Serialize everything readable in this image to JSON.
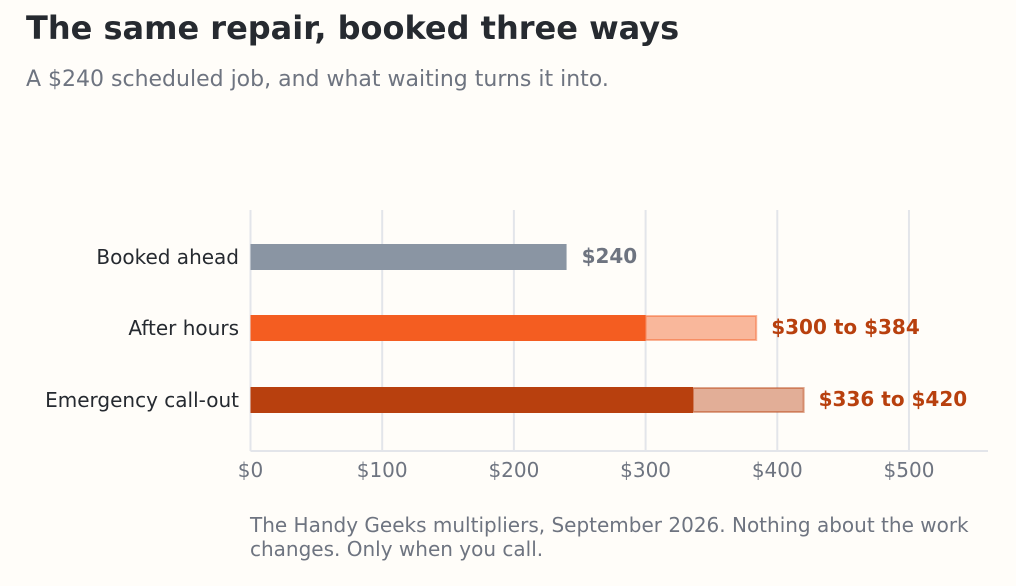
{
  "title": "The same repair, booked three ways",
  "subtitle": "A $240 scheduled job, and what waiting turns it into.",
  "footnote": "The Handy Geeks multipliers, September 2026. Nothing about the work changes. Only when you call.",
  "colors": {
    "background": "#FFFDF9",
    "grid": "#E3E5EA",
    "axis_text": "#6E7480",
    "category_text": "#262A30",
    "booked_ahead": "#8A95A3",
    "after_hours": "#F45D21",
    "after_hours_range": "#F9B79B",
    "emergency": "#B8400E",
    "emergency_range": "#E2AE97",
    "accent_label": "#B8400E",
    "neutral_label": "#6E7480"
  },
  "chart_data": {
    "type": "bar",
    "orientation": "horizontal",
    "xlim": [
      0,
      560
    ],
    "xticks": [
      0,
      100,
      200,
      300,
      400,
      500
    ],
    "xtick_labels": [
      "$0",
      "$100",
      "$200",
      "$300",
      "$400",
      "$500"
    ],
    "grid": true,
    "categories": [
      "Booked ahead",
      "After hours",
      "Emergency call-out"
    ],
    "bars": [
      {
        "category": "Booked ahead",
        "low": 240,
        "high": 240,
        "label": "$240",
        "color": "#8A95A3",
        "range_color": "#8A95A3",
        "label_color": "#6E7480"
      },
      {
        "category": "After hours",
        "low": 300,
        "high": 384,
        "label": "$300 to $384",
        "color": "#F45D21",
        "range_color": "#F9B79B",
        "label_color": "#B8400E"
      },
      {
        "category": "Emergency call-out",
        "low": 336,
        "high": 420,
        "label": "$336 to $420",
        "color": "#B8400E",
        "range_color": "#E2AE97",
        "label_color": "#B8400E"
      }
    ]
  }
}
